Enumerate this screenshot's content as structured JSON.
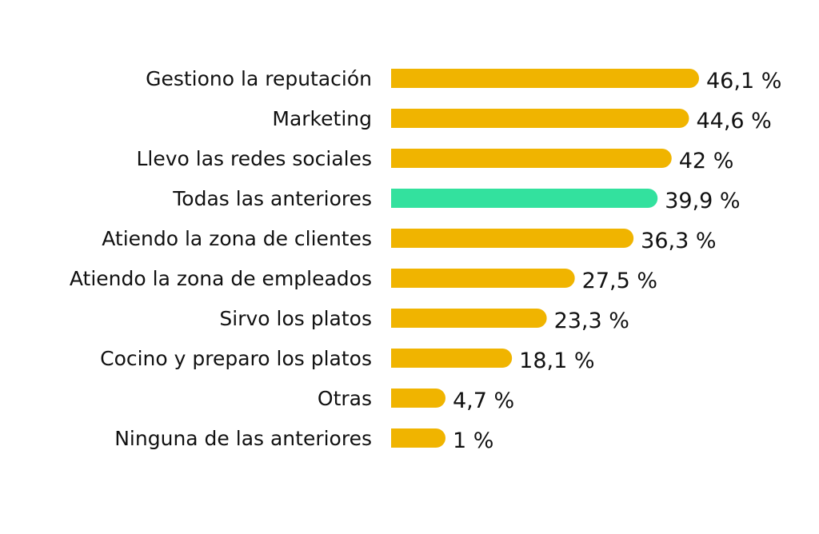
{
  "chart_data": {
    "type": "bar",
    "orientation": "horizontal",
    "title": "",
    "xlabel": "",
    "ylabel": "",
    "grid": false,
    "legend": "none",
    "xlim": [
      0,
      46.1
    ],
    "categories": [
      "Gestiono la reputación",
      "Marketing",
      "Llevo las redes sociales",
      "Todas las anteriores",
      "Atiendo la zona de clientes",
      "Atiendo la zona de empleados",
      "Sirvo los platos",
      "Cocino y preparo los platos",
      "Otras",
      "Ninguna de las anteriores"
    ],
    "values": [
      46.1,
      44.6,
      42,
      39.9,
      36.3,
      27.5,
      23.3,
      18.1,
      4.7,
      1
    ],
    "value_labels": [
      "46,1 %",
      "44,6 %",
      "42 %",
      "39,9 %",
      "36,3 %",
      "27,5 %",
      "23,3 %",
      "18,1 %",
      "4,7 %",
      "1 %"
    ],
    "highlight_index": 3,
    "colors": {
      "bar": "#f0b400",
      "highlight": "#33e19e",
      "text": "#111111",
      "background": "#ffffff"
    }
  }
}
